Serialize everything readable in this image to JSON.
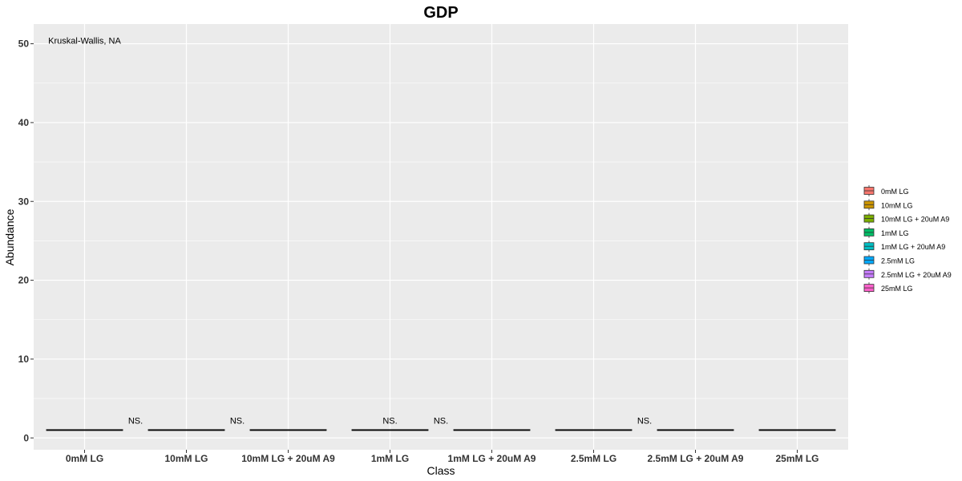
{
  "chart_data": {
    "type": "box",
    "title": "GDP",
    "xlabel": "Class",
    "ylabel": "Abundance",
    "ylim": [
      -1.5,
      52.5
    ],
    "yticks": [
      0,
      10,
      20,
      30,
      40,
      50
    ],
    "grid": true,
    "legend_position": "right",
    "categories": [
      "0mM LG",
      "10mM LG",
      "10mM LG + 20uM A9",
      "1mM LG",
      "1mM LG + 20uM A9",
      "2.5mM LG",
      "2.5mM LG + 20uM A9",
      "25mM LG"
    ],
    "values": [
      1,
      1,
      1,
      1,
      1,
      1,
      1,
      1
    ],
    "colors": [
      "#F8766D",
      "#CD9600",
      "#7CAE00",
      "#00BE67",
      "#00BFC4",
      "#00A9FF",
      "#C77CFF",
      "#FF61CC"
    ],
    "legend": [
      "0mM LG",
      "10mM LG",
      "10mM LG + 20uM A9",
      "1mM LG",
      "1mM LG + 20uM A9",
      "2.5mM LG",
      "2.5mM LG + 20uM A9",
      "25mM LG"
    ],
    "annotations": [
      {
        "text": "Kruskal-Wallis, NA",
        "x": "0mM LG",
        "y": 50
      },
      {
        "text": "NS.",
        "x": 1.5,
        "y": 1.8
      },
      {
        "text": "NS.",
        "x": 2.5,
        "y": 1.8
      },
      {
        "text": "NS.",
        "x": 4.0,
        "y": 1.8
      },
      {
        "text": "NS.",
        "x": 4.5,
        "y": 1.8
      },
      {
        "text": "NS.",
        "x": 6.5,
        "y": 1.8
      }
    ]
  }
}
